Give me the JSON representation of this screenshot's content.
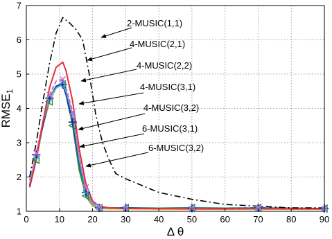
{
  "chart_data": {
    "type": "line",
    "title": "",
    "xlabel": "Δ θ",
    "ylabel": "RMSE",
    "ylabel_subscript": "1",
    "xlim": [
      0,
      90
    ],
    "ylim": [
      1,
      7
    ],
    "xticks": [
      "0",
      "10",
      "20",
      "30",
      "40",
      "50",
      "60",
      "70",
      "80",
      "90"
    ],
    "yticks": [
      "1",
      "2",
      "3",
      "4",
      "5",
      "6",
      "7"
    ],
    "grid": true,
    "legend": "arrow-annotations",
    "series": [
      {
        "name": "2-MUSIC(1,1)",
        "color": "#000000",
        "style": "dashdot",
        "marker": "none",
        "x": [
          1,
          3,
          5,
          7,
          9,
          11,
          13,
          15,
          17,
          19,
          21,
          23,
          25,
          27,
          30,
          35,
          40,
          50,
          60,
          70,
          80,
          90
        ],
        "y": [
          2.0,
          3.0,
          4.2,
          5.3,
          6.2,
          6.65,
          6.5,
          6.3,
          6.0,
          5.0,
          3.8,
          3.0,
          2.5,
          2.1,
          1.95,
          1.75,
          1.55,
          1.35,
          1.2,
          1.15,
          1.1,
          1.1
        ]
      },
      {
        "name": "4-MUSIC(2,1)",
        "color": "#e0303a",
        "style": "solid",
        "marker": "none",
        "x": [
          1,
          3,
          5,
          7,
          9,
          11,
          12,
          14,
          16,
          18,
          20,
          22,
          25,
          30,
          40,
          50,
          60,
          70,
          80,
          90
        ],
        "y": [
          1.7,
          2.5,
          3.6,
          4.6,
          5.2,
          5.35,
          5.1,
          4.2,
          2.8,
          1.8,
          1.3,
          1.15,
          1.1,
          1.08,
          1.08,
          1.07,
          1.07,
          1.08,
          1.07,
          1.07
        ]
      },
      {
        "name": "4-MUSIC(2,2)",
        "color": "#d070d0",
        "style": "dashed",
        "marker": "x",
        "x": [
          1,
          3,
          5,
          7,
          9,
          11,
          12,
          14,
          16,
          18,
          20,
          22,
          25,
          30,
          40,
          50,
          60,
          70,
          80,
          90
        ],
        "y": [
          1.9,
          2.7,
          3.6,
          4.4,
          4.8,
          4.85,
          4.6,
          3.9,
          2.6,
          1.7,
          1.25,
          1.12,
          1.1,
          1.08,
          1.07,
          1.08,
          1.07,
          1.1,
          1.08,
          1.07
        ]
      },
      {
        "name": "4-MUSIC(3,1)",
        "color": "#40b0e0",
        "style": "solid",
        "marker": "o",
        "x": [
          1,
          3,
          5,
          7,
          9,
          11,
          12,
          14,
          16,
          18,
          20,
          22,
          25,
          30,
          40,
          50,
          60,
          70,
          80,
          90
        ],
        "y": [
          1.8,
          2.6,
          3.6,
          4.3,
          4.6,
          4.7,
          4.5,
          3.8,
          2.5,
          1.6,
          1.2,
          1.1,
          1.09,
          1.08,
          1.08,
          1.08,
          1.07,
          1.07,
          1.07,
          1.07
        ]
      },
      {
        "name": "4-MUSIC(3,2)",
        "color": "#1f2d9c",
        "style": "solid",
        "marker": "+",
        "x": [
          1,
          3,
          5,
          7,
          9,
          11,
          12,
          14,
          16,
          18,
          20,
          22,
          25,
          30,
          40,
          50,
          60,
          70,
          80,
          90
        ],
        "y": [
          1.75,
          2.65,
          3.5,
          4.3,
          4.65,
          4.7,
          4.4,
          3.6,
          2.4,
          1.55,
          1.2,
          1.1,
          1.09,
          1.1,
          1.08,
          1.09,
          1.08,
          1.1,
          1.08,
          1.08
        ]
      },
      {
        "name": "6-MUSIC(3,1)",
        "color": "#e8c020",
        "style": "solid",
        "marker": "none",
        "x": [
          1,
          3,
          5,
          7,
          9,
          11,
          12,
          14,
          16,
          18,
          20,
          22,
          25,
          30,
          40,
          50,
          60,
          70,
          80,
          90
        ],
        "y": [
          1.7,
          2.5,
          3.5,
          4.2,
          4.6,
          4.7,
          4.5,
          3.7,
          2.4,
          1.5,
          1.15,
          1.08,
          1.07,
          1.07,
          1.06,
          1.06,
          1.06,
          1.06,
          1.06,
          1.06
        ]
      },
      {
        "name": "6-MUSIC(3,2)",
        "color": "#1a8c3a",
        "style": "solid",
        "marker": "triangle-left",
        "x": [
          1,
          3,
          5,
          7,
          9,
          11,
          12,
          14,
          16,
          18,
          20,
          22,
          25,
          30,
          40,
          50,
          60,
          70,
          80,
          90
        ],
        "y": [
          1.7,
          2.5,
          3.5,
          4.2,
          4.6,
          4.7,
          4.4,
          3.5,
          2.2,
          1.45,
          1.15,
          1.1,
          1.1,
          1.1,
          1.09,
          1.1,
          1.09,
          1.1,
          1.09,
          1.08
        ]
      }
    ]
  }
}
